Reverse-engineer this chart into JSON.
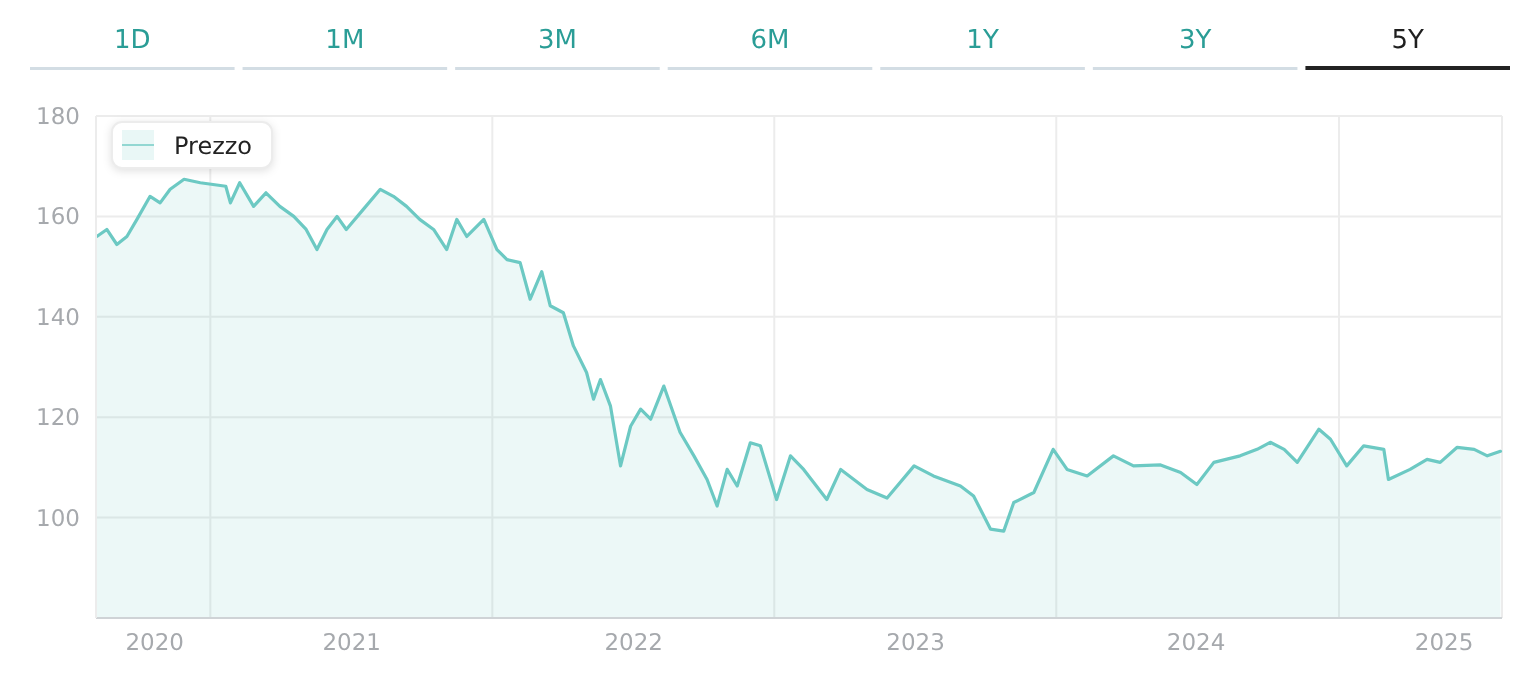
{
  "chart_data": {
    "type": "area",
    "annotations": [
      "1D",
      "1M",
      "3M",
      "6M",
      "1Y",
      "3Y",
      "5Y"
    ],
    "x": [
      "2020-08-07",
      "2020-08-20",
      "2020-09-02",
      "2020-09-15",
      "2020-09-28",
      "2020-10-15",
      "2020-10-28",
      "2020-11-10",
      "2020-11-28",
      "2020-12-19",
      "2021-01-21",
      "2021-01-27",
      "2021-02-08",
      "2021-02-26",
      "2021-03-14",
      "2021-04-01",
      "2021-04-19",
      "2021-05-05",
      "2021-05-19",
      "2021-06-01",
      "2021-06-14",
      "2021-06-26",
      "2021-07-18",
      "2021-08-09",
      "2021-08-26",
      "2021-09-12",
      "2021-09-29",
      "2021-10-17",
      "2021-11-03",
      "2021-11-16",
      "2021-11-29",
      "2021-12-21",
      "2022-01-07",
      "2022-01-20",
      "2022-02-06",
      "2022-02-19",
      "2022-03-06",
      "2022-03-17",
      "2022-04-03",
      "2022-04-16",
      "2022-05-03",
      "2022-05-12",
      "2022-05-21",
      "2022-06-03",
      "2022-06-16",
      "2022-06-29",
      "2022-07-12",
      "2022-07-25",
      "2022-08-11",
      "2022-09-01",
      "2022-09-19",
      "2022-10-06",
      "2022-10-19",
      "2022-11-01",
      "2022-11-14",
      "2022-12-01",
      "2022-12-14",
      "2023-01-04",
      "2023-01-22",
      "2023-02-08",
      "2023-03-10",
      "2023-03-28",
      "2023-05-01",
      "2023-05-27",
      "2023-07-01",
      "2023-07-26",
      "2023-08-30",
      "2023-09-16",
      "2023-10-08",
      "2023-10-25",
      "2023-11-07",
      "2023-12-03",
      "2023-12-28",
      "2024-01-15",
      "2024-02-10",
      "2024-03-15",
      "2024-04-10",
      "2024-05-15",
      "2024-06-10",
      "2024-07-01",
      "2024-07-23",
      "2024-08-26",
      "2024-09-17",
      "2024-10-04",
      "2024-10-22",
      "2024-11-08",
      "2024-12-06",
      "2024-12-21",
      "2025-01-11",
      "2025-02-02",
      "2025-02-28",
      "2025-03-06",
      "2025-04-03",
      "2025-04-25",
      "2025-05-12",
      "2025-06-03",
      "2025-06-25",
      "2025-07-12",
      "2025-07-29"
    ],
    "series": [
      {
        "name": "Prezzo",
        "color": "#6cc9c3",
        "values": [
          156,
          157.4,
          154.4,
          156,
          159.4,
          164,
          162.7,
          165.4,
          167.4,
          166.7,
          166,
          162.7,
          166.7,
          162,
          164.7,
          162,
          160,
          157.4,
          153.4,
          157.4,
          160,
          157.4,
          161.4,
          165.4,
          164,
          162,
          159.4,
          157.4,
          153.4,
          159.4,
          156,
          159.4,
          153.4,
          151.4,
          150.8,
          143.5,
          149,
          142.2,
          140.8,
          134.2,
          128.9,
          123.6,
          127.5,
          122.2,
          110.3,
          118.2,
          121.6,
          119.6,
          126.2,
          117,
          112.3,
          107.6,
          102.3,
          109.6,
          106.3,
          114.9,
          114.3,
          103.6,
          112.3,
          109.6,
          103.6,
          109.6,
          105.6,
          103.9,
          110.3,
          108.3,
          106.3,
          104.3,
          97.7,
          97.3,
          103,
          105,
          113.6,
          109.6,
          108.3,
          112.3,
          110.3,
          110.5,
          109,
          106.6,
          111,
          112.3,
          113.6,
          115,
          113.6,
          111,
          117.6,
          115.6,
          110.3,
          114.3,
          113.6,
          107.6,
          109.6,
          111.6,
          111,
          114,
          113.6,
          112.3,
          113.2
        ]
      }
    ],
    "xlim": [
      "2020-08-06",
      "2025-07-31"
    ],
    "xticks": [
      {
        "value": "2020-10-21",
        "label": "2020"
      },
      {
        "value": "2021-01-01",
        "label": null
      },
      {
        "value": "2021-07-03",
        "label": "2021"
      },
      {
        "value": "2022-01-01",
        "label": null
      },
      {
        "value": "2022-07-03",
        "label": "2022"
      },
      {
        "value": "2023-01-01",
        "label": null
      },
      {
        "value": "2023-07-03",
        "label": "2023"
      },
      {
        "value": "2024-01-01",
        "label": null
      },
      {
        "value": "2024-06-30",
        "label": "2024"
      },
      {
        "value": "2025-01-01",
        "label": null
      },
      {
        "value": "2025-05-17",
        "label": "2025"
      }
    ],
    "ylim": [
      80,
      180
    ],
    "yticks": [
      100,
      120,
      140,
      160,
      180
    ],
    "grid": true,
    "legend": "top left"
  }
}
